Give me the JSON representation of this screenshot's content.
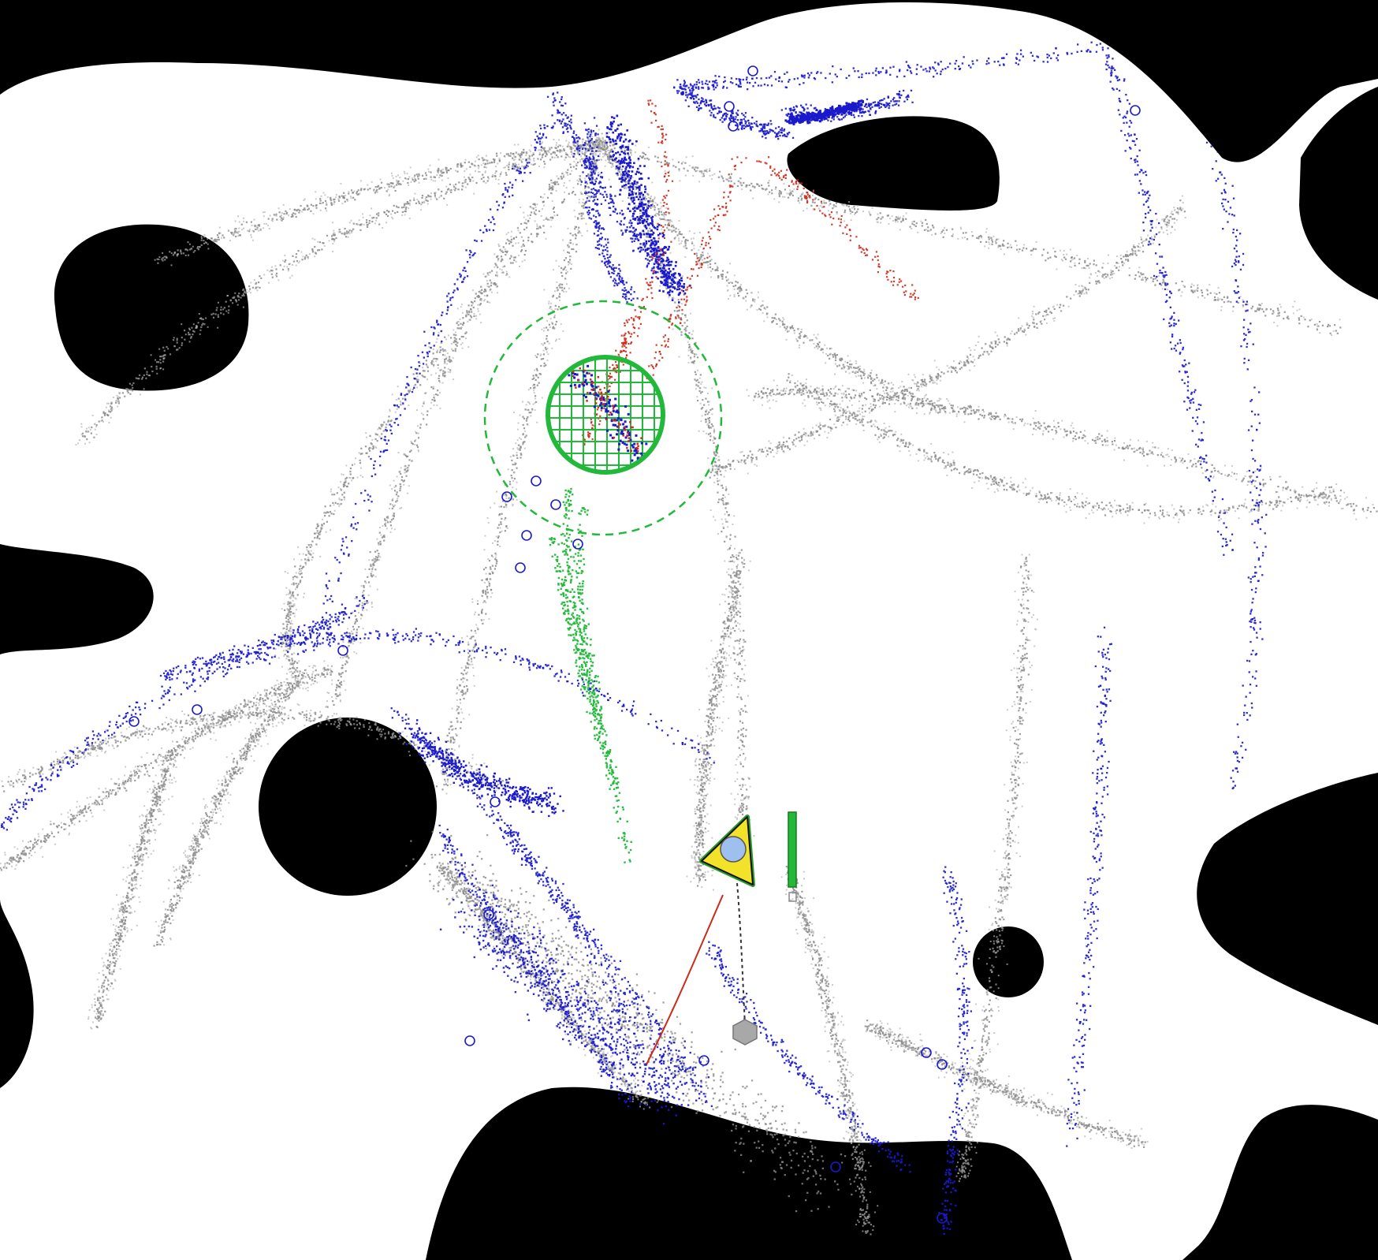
{
  "map": {
    "type": "occupancy-grid-visualization",
    "colors": {
      "occupied": "#000000",
      "free": "#ffffff",
      "trail_gray": "#8c8c8c",
      "trail_gray_light": "#b4b4b4",
      "trail_blue": "#1a1acc",
      "trail_red": "#cc2a1a",
      "goal_green": "#22b83a",
      "robot_fill": "#f2e22a",
      "robot_outline": "#2a9a2a",
      "robot_center": "#9ec0ee",
      "marker_gray": "#a8a8a8"
    },
    "icons": {
      "robot": "robot-pose-icon",
      "goal": "goal-region-icon",
      "waypoint": "waypoint-marker-icon",
      "gauge": "battery-gauge-icon"
    },
    "robot_heading": "north",
    "gauge_level": 1.0
  }
}
